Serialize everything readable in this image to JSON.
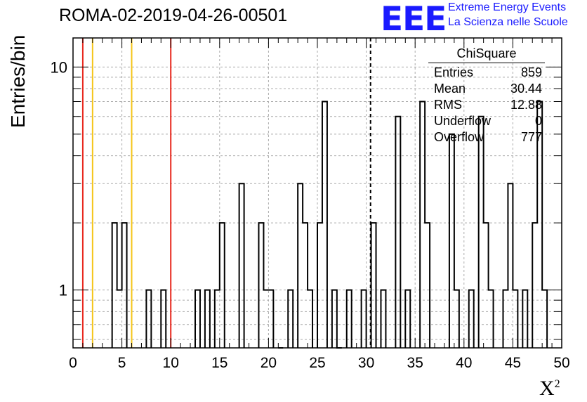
{
  "title": "ROMA-02-2019-04-26-00501",
  "logo": {
    "mark": "EEE",
    "line1": "Extreme Energy Events",
    "line2": "La Scienza nelle Scuole"
  },
  "stats_box": {
    "title": "ChiSquare",
    "rows": [
      {
        "label": "Entries",
        "value": "859"
      },
      {
        "label": "Mean",
        "value": "30.44"
      },
      {
        "label": "RMS",
        "value": "12.88"
      },
      {
        "label": "Underflow",
        "value": "0"
      },
      {
        "label": "Overflow",
        "value": "777"
      }
    ]
  },
  "chart_data": {
    "type": "bar",
    "histogram": true,
    "xlabel": "X",
    "xlabel_sup": "2",
    "ylabel": "Entries/bin",
    "xlim": [
      0,
      50
    ],
    "ylim": [
      0.55,
      13.5
    ],
    "y_scale": "log",
    "bin_width": 0.5,
    "x_ticks": [
      0,
      5,
      10,
      15,
      20,
      25,
      30,
      35,
      40,
      45,
      50
    ],
    "y_tick_labels": [
      {
        "value": 1,
        "label": "1"
      },
      {
        "value": 10,
        "label": "10"
      }
    ],
    "grid": true,
    "bins": [
      {
        "x": 4.0,
        "value": 2
      },
      {
        "x": 4.5,
        "value": 1
      },
      {
        "x": 5.0,
        "value": 2
      },
      {
        "x": 7.5,
        "value": 1
      },
      {
        "x": 9.0,
        "value": 1
      },
      {
        "x": 12.5,
        "value": 1
      },
      {
        "x": 13.5,
        "value": 1
      },
      {
        "x": 14.5,
        "value": 1
      },
      {
        "x": 15.0,
        "value": 2
      },
      {
        "x": 17.0,
        "value": 3
      },
      {
        "x": 19.0,
        "value": 2
      },
      {
        "x": 19.5,
        "value": 1
      },
      {
        "x": 20.0,
        "value": 1
      },
      {
        "x": 21.0,
        "value": 0
      },
      {
        "x": 22.0,
        "value": 1
      },
      {
        "x": 23.0,
        "value": 3
      },
      {
        "x": 23.5,
        "value": 2
      },
      {
        "x": 24.0,
        "value": 1
      },
      {
        "x": 25.0,
        "value": 2
      },
      {
        "x": 25.5,
        "value": 7
      },
      {
        "x": 26.5,
        "value": 1
      },
      {
        "x": 27.0,
        "value": 0
      },
      {
        "x": 28.0,
        "value": 1
      },
      {
        "x": 29.5,
        "value": 1
      },
      {
        "x": 30.5,
        "value": 2
      },
      {
        "x": 31.5,
        "value": 1
      },
      {
        "x": 33.0,
        "value": 6
      },
      {
        "x": 34.0,
        "value": 1
      },
      {
        "x": 35.5,
        "value": 7
      },
      {
        "x": 36.0,
        "value": 2
      },
      {
        "x": 38.5,
        "value": 5
      },
      {
        "x": 39.0,
        "value": 1
      },
      {
        "x": 40.5,
        "value": 1
      },
      {
        "x": 41.5,
        "value": 6
      },
      {
        "x": 42.0,
        "value": 2
      },
      {
        "x": 42.5,
        "value": 1
      },
      {
        "x": 44.0,
        "value": 1
      },
      {
        "x": 44.5,
        "value": 3
      },
      {
        "x": 45.0,
        "value": 1
      },
      {
        "x": 46.0,
        "value": 1
      },
      {
        "x": 47.0,
        "value": 2
      },
      {
        "x": 47.5,
        "value": 7
      },
      {
        "x": 48.0,
        "value": 1
      }
    ],
    "reference_lines": [
      {
        "x": 1.0,
        "color": "#e8281e",
        "style": "solid"
      },
      {
        "x": 2.0,
        "color": "#f5c518",
        "style": "solid"
      },
      {
        "x": 6.0,
        "color": "#f5c518",
        "style": "solid"
      },
      {
        "x": 10.0,
        "color": "#e8281e",
        "style": "solid"
      },
      {
        "x": 30.44,
        "color": "#000000",
        "style": "dashed"
      }
    ]
  }
}
